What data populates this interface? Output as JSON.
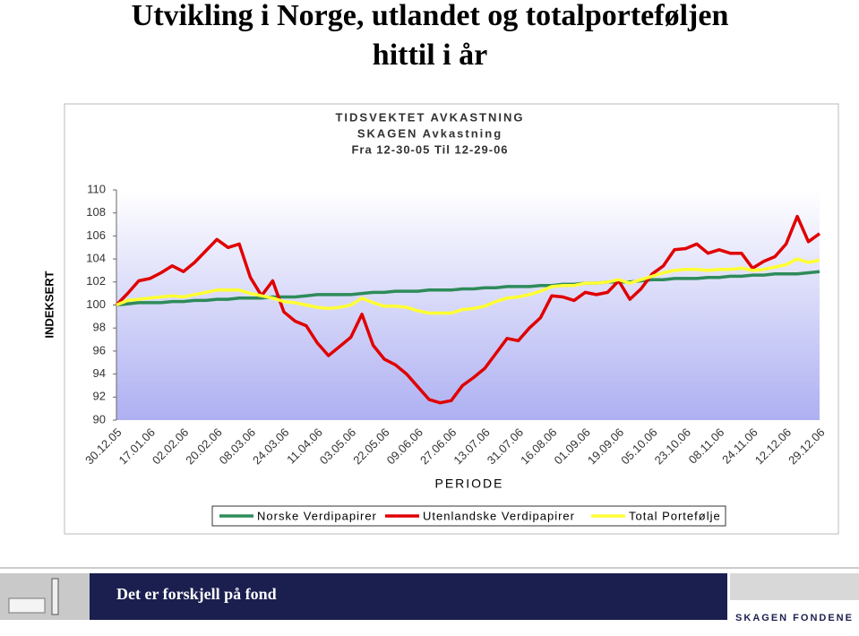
{
  "slide": {
    "title_lines": [
      "Utvikling i Norge, utlandet og totalporteføljen",
      "hittil i år"
    ],
    "footer": "Det er forskjell på fond",
    "logo": "SKAGEN FONDENE"
  },
  "chart_data": {
    "type": "line",
    "title": [
      "TIDSVEKTET AVKASTNING",
      "SKAGEN Avkastning",
      "Fra 12-30-05 Til 12-29-06"
    ],
    "x_label": "PERIODE",
    "y_label": "INDEKSERT",
    "categories": [
      "30.12.05",
      null,
      null,
      "17.01.06",
      null,
      null,
      "02.02.06",
      null,
      null,
      "20.02.06",
      null,
      null,
      "08.03.06",
      null,
      null,
      "24.03.06",
      null,
      null,
      "11.04.06",
      null,
      null,
      "03.05.06",
      null,
      null,
      "22.05.06",
      null,
      null,
      "09.06.06",
      null,
      null,
      "27.06.06",
      null,
      null,
      "13.07.06",
      null,
      null,
      "31.07.06",
      null,
      null,
      "16.08.06",
      null,
      null,
      "01.09.06",
      null,
      null,
      "19.09.06",
      null,
      null,
      "05.10.06",
      null,
      null,
      "23.10.06",
      null,
      null,
      "08.11.06",
      null,
      null,
      "24.11.06",
      null,
      null,
      "12.12.06",
      null,
      null,
      "29.12.06"
    ],
    "ylim": [
      90,
      110
    ],
    "yticks": [
      90,
      92,
      94,
      96,
      98,
      100,
      102,
      104,
      106,
      108,
      110
    ],
    "legend": "bottom",
    "series": [
      {
        "name": "Norske Verdipapirer",
        "color": "#2e8b5a",
        "values": [
          100.0,
          100.1,
          100.2,
          100.2,
          100.2,
          100.3,
          100.3,
          100.4,
          100.4,
          100.5,
          100.5,
          100.6,
          100.6,
          100.6,
          100.7,
          100.7,
          100.7,
          100.8,
          100.9,
          100.9,
          100.9,
          100.9,
          101.0,
          101.1,
          101.1,
          101.2,
          101.2,
          101.2,
          101.3,
          101.3,
          101.3,
          101.4,
          101.4,
          101.5,
          101.5,
          101.6,
          101.6,
          101.6,
          101.7,
          101.7,
          101.8,
          101.8,
          101.9,
          101.9,
          102.0,
          102.0,
          102.0,
          102.1,
          102.2,
          102.2,
          102.3,
          102.3,
          102.3,
          102.4,
          102.4,
          102.5,
          102.5,
          102.6,
          102.6,
          102.7,
          102.7,
          102.7,
          102.8,
          102.9
        ]
      },
      {
        "name": "Utenlandske Verdipapirer",
        "color": "#e00000",
        "values": [
          100.0,
          101.0,
          102.1,
          102.3,
          102.8,
          103.4,
          102.9,
          103.7,
          104.7,
          105.7,
          105.0,
          105.3,
          102.4,
          100.8,
          102.1,
          99.4,
          98.6,
          98.2,
          96.7,
          95.6,
          96.4,
          97.2,
          99.2,
          96.5,
          95.3,
          94.8,
          94.0,
          92.9,
          91.8,
          91.5,
          91.7,
          93.0,
          93.7,
          94.5,
          95.8,
          97.1,
          96.9,
          98.0,
          98.9,
          100.8,
          100.7,
          100.4,
          101.1,
          100.9,
          101.1,
          102.1,
          100.5,
          101.4,
          102.7,
          103.4,
          104.8,
          104.9,
          105.3,
          104.5,
          104.8,
          104.5,
          104.5,
          103.2,
          103.8,
          104.2,
          105.3,
          107.7,
          105.5,
          106.2
        ]
      },
      {
        "name": "Total Portefølje",
        "color": "#ffff33",
        "values": [
          100.0,
          100.4,
          100.5,
          100.6,
          100.7,
          100.8,
          100.7,
          100.9,
          101.1,
          101.3,
          101.3,
          101.3,
          101.0,
          100.8,
          100.6,
          100.3,
          100.2,
          100.0,
          99.8,
          99.7,
          99.8,
          100.0,
          100.6,
          100.2,
          99.9,
          99.9,
          99.8,
          99.5,
          99.3,
          99.3,
          99.3,
          99.6,
          99.7,
          99.9,
          100.3,
          100.6,
          100.7,
          100.9,
          101.2,
          101.6,
          101.7,
          101.7,
          101.9,
          101.9,
          102.0,
          102.2,
          101.9,
          102.2,
          102.5,
          102.8,
          103.0,
          103.1,
          103.1,
          103.0,
          103.1,
          103.1,
          103.2,
          103.0,
          103.1,
          103.3,
          103.5,
          104.0,
          103.7,
          103.9
        ]
      }
    ]
  }
}
